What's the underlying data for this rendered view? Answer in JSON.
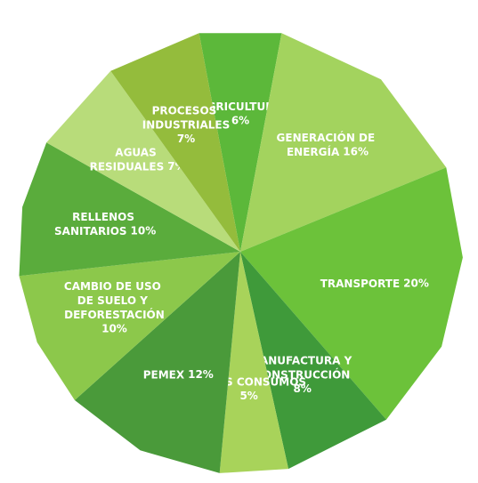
{
  "chart_data": {
    "type": "pie",
    "categories": [
      "AGRICULTURA",
      "GENERACIÓN DE ENERGÍA",
      "TRANSPORTE",
      "MANUFACTURA Y CONSTRUCCIÓN",
      "OTROS CONSUMOS",
      "PEMEX",
      "CAMBIO DE USO DE SUELO Y DEFORESTACIÓN",
      "RELLENOS SANITARIOS",
      "AGUAS RESIDUALES",
      "PROCESOS INDUSTRIALES"
    ],
    "values": [
      6,
      16,
      20,
      8,
      5,
      12,
      10,
      10,
      7,
      7
    ],
    "value_labels": [
      "6%",
      "16%",
      "20%",
      "8%",
      "5%",
      "12%",
      "10%",
      "10%",
      "7%",
      "7%"
    ],
    "colors": [
      "#5cb83a",
      "#a3d35e",
      "#6cc23a",
      "#3f9a3a",
      "#a8d35a",
      "#4a9a3a",
      "#8cc84b",
      "#5aac3c",
      "#b8dc7a",
      "#94bc3c"
    ]
  }
}
